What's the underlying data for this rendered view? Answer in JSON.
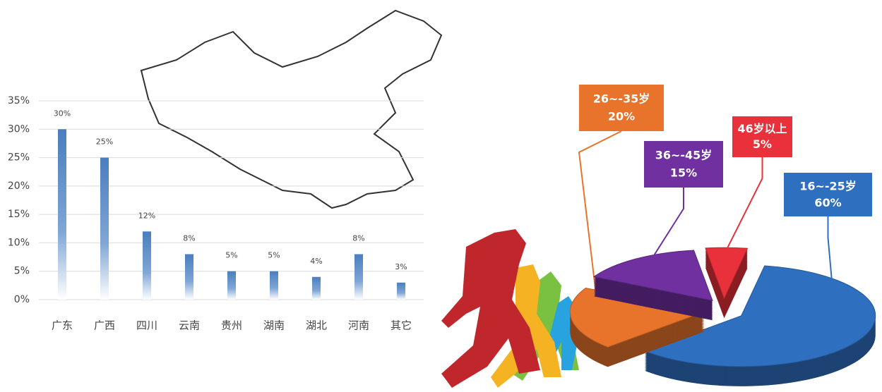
{
  "chart_data": [
    {
      "type": "bar",
      "categories": [
        "广东",
        "广西",
        "四川",
        "云南",
        "贵州",
        "湖南",
        "湖北",
        "河南",
        "其它"
      ],
      "values": [
        30,
        25,
        12,
        8,
        5,
        5,
        4,
        8,
        3
      ],
      "value_labels": [
        "30%",
        "25%",
        "12%",
        "8%",
        "5%",
        "5%",
        "4%",
        "8%",
        "3%"
      ],
      "color": "#4a7ebf",
      "ylim": [
        0,
        35
      ],
      "yticks": [
        {
          "value": 0,
          "label": "0%"
        },
        {
          "value": 5,
          "label": "5%"
        },
        {
          "value": 10,
          "label": "10%"
        },
        {
          "value": 15,
          "label": "15%"
        },
        {
          "value": 20,
          "label": "20%"
        },
        {
          "value": 25,
          "label": "25%"
        },
        {
          "value": 30,
          "label": "30%"
        },
        {
          "value": 35,
          "label": "35%"
        }
      ],
      "grid": true
    },
    {
      "type": "pie",
      "categories": [
        "16~-25岁",
        "26~-35岁",
        "36~-45岁",
        "46岁以上"
      ],
      "values": [
        60,
        20,
        15,
        5
      ],
      "value_labels": [
        "60%",
        "20%",
        "15%",
        "5%"
      ],
      "colors": [
        "#2e6fbf",
        "#e8732b",
        "#7030a0",
        "#e8313a"
      ]
    }
  ]
}
